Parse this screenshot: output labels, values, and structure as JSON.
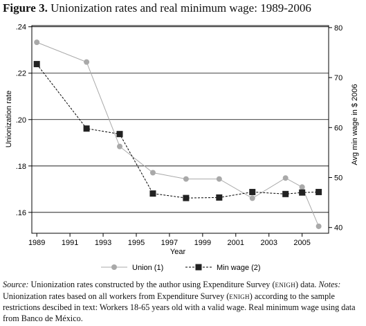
{
  "figure": {
    "label": "Figure 3.",
    "title": "Unionization rates and real minimum wage: 1989-2006"
  },
  "chart_data": {
    "type": "line",
    "xlabel": "Year",
    "ylabel_left": "Unionization rate",
    "ylabel_right": "Avg min wage in $ 2006",
    "xlim": [
      1988.7,
      2006.6
    ],
    "ylim_left": [
      0.151,
      0.2405
    ],
    "ylim_right": [
      38.85,
      80.4
    ],
    "x_ticks": [
      1989,
      1991,
      1993,
      1995,
      1997,
      1999,
      2001,
      2003,
      2005
    ],
    "y_ticks_left": [
      0.16,
      0.18,
      0.2,
      0.22,
      0.24
    ],
    "y_tick_labels_left": [
      ".16",
      ".18",
      ".20",
      ".22",
      ".24"
    ],
    "y_ticks_right": [
      40,
      50,
      60,
      70,
      80
    ],
    "y_tick_labels_right": [
      "40",
      "50",
      "60",
      "70",
      "80"
    ],
    "grid": "horizontal",
    "legend_position": "bottom",
    "series": [
      {
        "name": "Union (1)",
        "axis": "left",
        "color": "#a9a9a9",
        "marker": "circle",
        "line_style": "solid",
        "x": [
          1989,
          1992,
          1994,
          1996,
          1998,
          2000,
          2002,
          2004,
          2005,
          2006
        ],
        "y": [
          0.2333,
          0.2248,
          0.1884,
          0.1771,
          0.1744,
          0.1744,
          0.1661,
          0.1748,
          0.1709,
          0.154
        ]
      },
      {
        "name": "Min wage (2)",
        "axis": "right",
        "color": "#222222",
        "marker": "square",
        "line_style": "dashed",
        "x": [
          1989,
          1992,
          1994,
          1996,
          1998,
          2000,
          2002,
          2004,
          2005,
          2006
        ],
        "y": [
          72.7,
          59.8,
          58.7,
          46.8,
          45.9,
          46.0,
          47.1,
          46.7,
          47.0,
          47.1
        ]
      }
    ]
  },
  "caption": {
    "source_label": "Source:",
    "source_text": " Unionization rates constructed by the author using Expenditure Survey (",
    "abbr1": "ENIGH",
    "source_text2": ") data. ",
    "notes_label": "Notes:",
    "notes_text": " Unionization rates based on all workers from Expenditure Survey (",
    "abbr2": "ENIGH",
    "notes_text2": ") according to the sample restrictions descibed in text: Workers 18-65 years old with a valid wage. Real minimum wage using data from Banco de México."
  }
}
